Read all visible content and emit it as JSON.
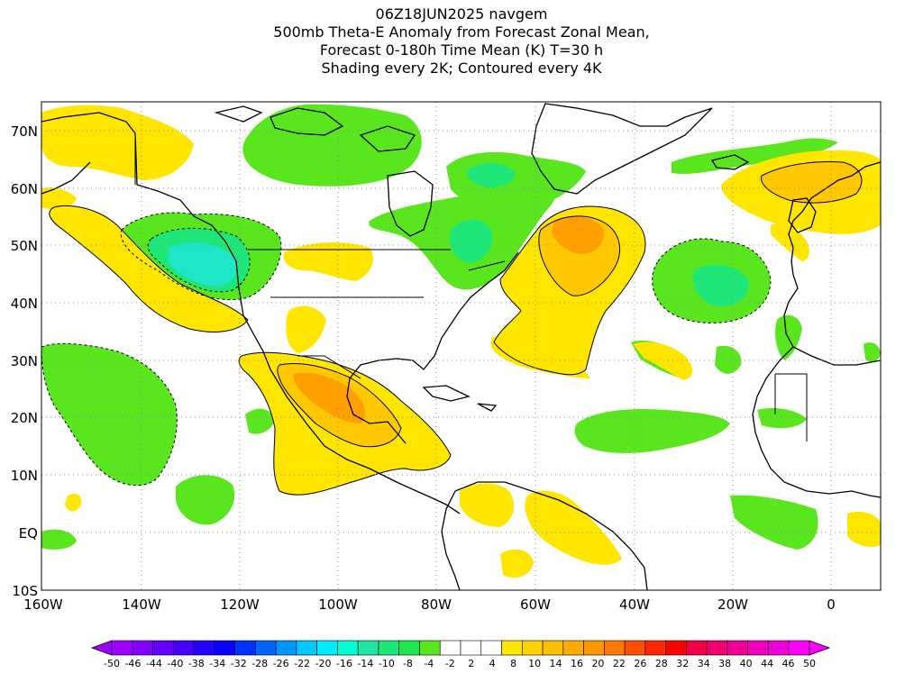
{
  "title": {
    "line1": "06Z18JUN2025 navgem",
    "line2": "500mb Theta-E Anomaly from Forecast Zonal Mean,",
    "line3": "Forecast 0-180h Time Mean (K) T=30 h",
    "line4": "Shading every 2K; Contoured every 4K"
  },
  "lat_labels": [
    "70N",
    "60N",
    "50N",
    "40N",
    "30N",
    "20N",
    "10N",
    "EQ",
    "10S"
  ],
  "lon_labels": [
    "160W",
    "140W",
    "120W",
    "100W",
    "80W",
    "60W",
    "40W",
    "20W",
    "0"
  ],
  "colorbar": {
    "labels": [
      "-50",
      "-46",
      "-44",
      "-40",
      "-38",
      "-34",
      "-32",
      "-28",
      "-26",
      "-22",
      "-20",
      "-16",
      "-14",
      "-10",
      "-8",
      "-4",
      "-2",
      "2",
      "4",
      "8",
      "10",
      "14",
      "16",
      "20",
      "22",
      "26",
      "28",
      "32",
      "34",
      "38",
      "40",
      "44",
      "46",
      "50"
    ],
    "colors": [
      "#a000ff",
      "#8200ff",
      "#6400ff",
      "#4600ff",
      "#2800ff",
      "#0a00ff",
      "#0032ff",
      "#0064ff",
      "#0096ff",
      "#00c8ff",
      "#00ebff",
      "#00ffd2",
      "#1ee6a0",
      "#1ee678",
      "#1ee650",
      "#5ae61e",
      "#ffffff",
      "#ffffff",
      "#ffffff",
      "#ffe600",
      "#ffd200",
      "#ffbe00",
      "#ffaa00",
      "#ff9600",
      "#ff7800",
      "#ff5000",
      "#ff2800",
      "#ff0000",
      "#f00046",
      "#f0006e",
      "#f00096",
      "#f000be",
      "#f000dc",
      "#ff00ff"
    ],
    "under_color": "#a000ff",
    "over_color": "#ff00ff"
  },
  "map": {
    "region": "North Atlantic / North America",
    "lon_range": [
      "160W",
      "10E"
    ],
    "lat_range": [
      "10S",
      "75N"
    ]
  }
}
